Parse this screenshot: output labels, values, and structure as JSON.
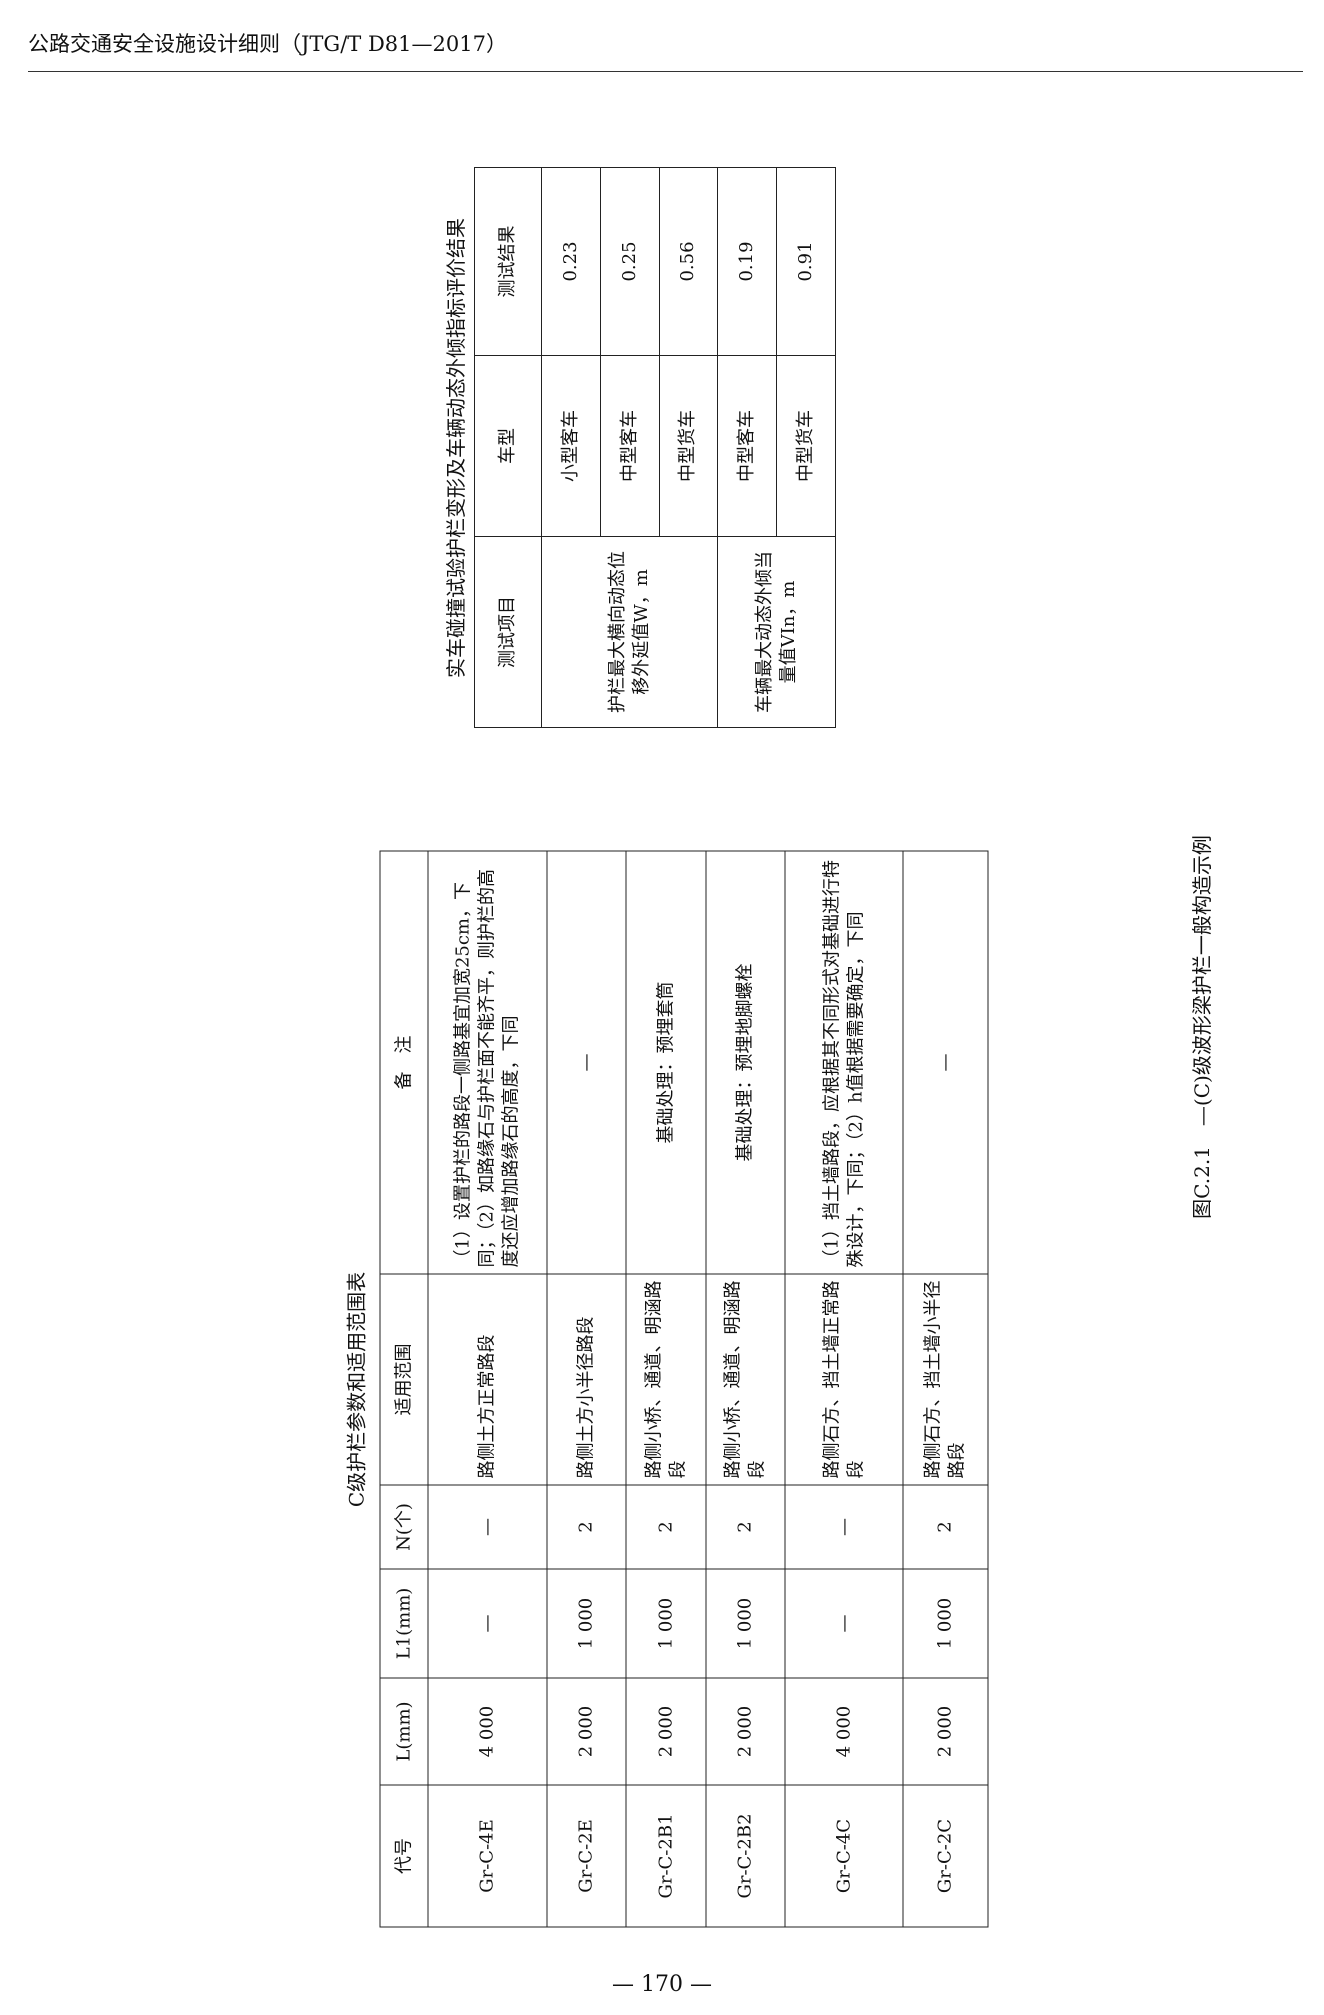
{
  "header": {
    "title": "公路交通安全设施设计细则（JTG/T D81—2017）"
  },
  "table1": {
    "caption": "实车碰撞试验护栏变形及车辆动态外倾指标评价结果",
    "headers": [
      "测试项目",
      "车型",
      "测试结果"
    ],
    "groups": [
      {
        "item": "护栏最大横向动态位移外延值W，m",
        "rows": [
          [
            "小型客车",
            "0.23"
          ],
          [
            "中型客车",
            "0.25"
          ],
          [
            "中型货车",
            "0.56"
          ]
        ]
      },
      {
        "item": "车辆最大动态外倾当量值VIn，m",
        "rows": [
          [
            "中型客车",
            "0.19"
          ],
          [
            "中型货车",
            "0.91"
          ]
        ]
      }
    ]
  },
  "table2": {
    "caption": "C级护栏参数和适用范围表",
    "headers": [
      "代号",
      "L(mm)",
      "L1(mm)",
      "N(个)",
      "适用范围",
      "备　注"
    ],
    "rows": [
      [
        "Gr-C-4E",
        "4 000",
        "—",
        "—",
        "路侧土方正常路段",
        "（1）设置护栏的路段一侧路基宜加宽25cm，下同；（2）如路缘石与护栏面不能齐平，则护栏的高度还应增加路缘石的高度，下同"
      ],
      [
        "Gr-C-2E",
        "2 000",
        "1 000",
        "2",
        "路侧土方小半径路段",
        "—"
      ],
      [
        "Gr-C-2B1",
        "2 000",
        "1 000",
        "2",
        "路侧小桥、通道、明涵路段",
        "基础处理：预埋套筒"
      ],
      [
        "Gr-C-2B2",
        "2 000",
        "1 000",
        "2",
        "路侧小桥、通道、明涵路段",
        "基础处理：预埋地脚螺栓"
      ],
      [
        "Gr-C-4C",
        "4 000",
        "—",
        "—",
        "路侧石方、挡土墙正常路段",
        "（1）挡土墙路段，应根据其不同形式对基础进行特殊设计，下同；（2）h值根据需要确定，下同"
      ],
      [
        "Gr-C-2C",
        "2 000",
        "1 000",
        "2",
        "路侧石方、挡土墙小半径路段",
        "—"
      ]
    ]
  },
  "figure_caption": "图C.2.1　—(C)级波形梁护栏一般构造示例",
  "page_number": "— 170 —"
}
